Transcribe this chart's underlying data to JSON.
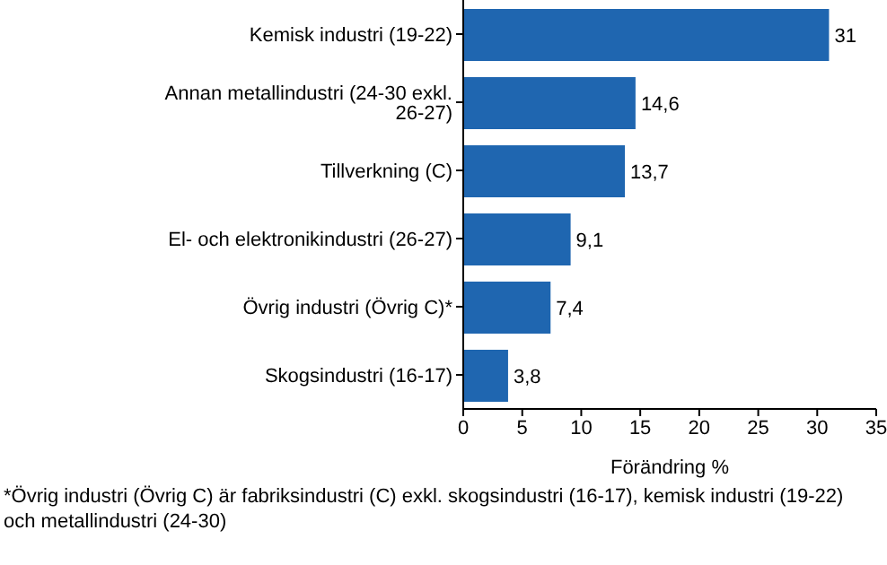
{
  "chart_data": {
    "type": "bar",
    "orientation": "horizontal",
    "xlabel": "Förändring %",
    "categories": [
      "Kemisk industri (19-22)",
      "Annan metallindustri (24-30 exkl. 26-27)",
      "Tillverkning (C)",
      "El- och elektronikindustri (26-27)",
      "Övrig industri (Övrig C)*",
      "Skogsindustri (16-17)"
    ],
    "values": [
      31,
      14.6,
      13.7,
      9.1,
      7.4,
      3.8
    ],
    "value_labels": [
      "31",
      "14,6",
      "13,7",
      "9,1",
      "7,4",
      "3,8"
    ],
    "color": "#1f66b0",
    "xlim": [
      0,
      35
    ],
    "xticks": [
      0,
      5,
      10,
      15,
      20,
      25,
      30,
      35
    ],
    "annotations": [
      "*Övrig industri (Övrig C) är fabriksindustri (C) exkl. skogsindustri (16-17), kemisk industri (19-22) och metallindustri (24-30)"
    ]
  }
}
